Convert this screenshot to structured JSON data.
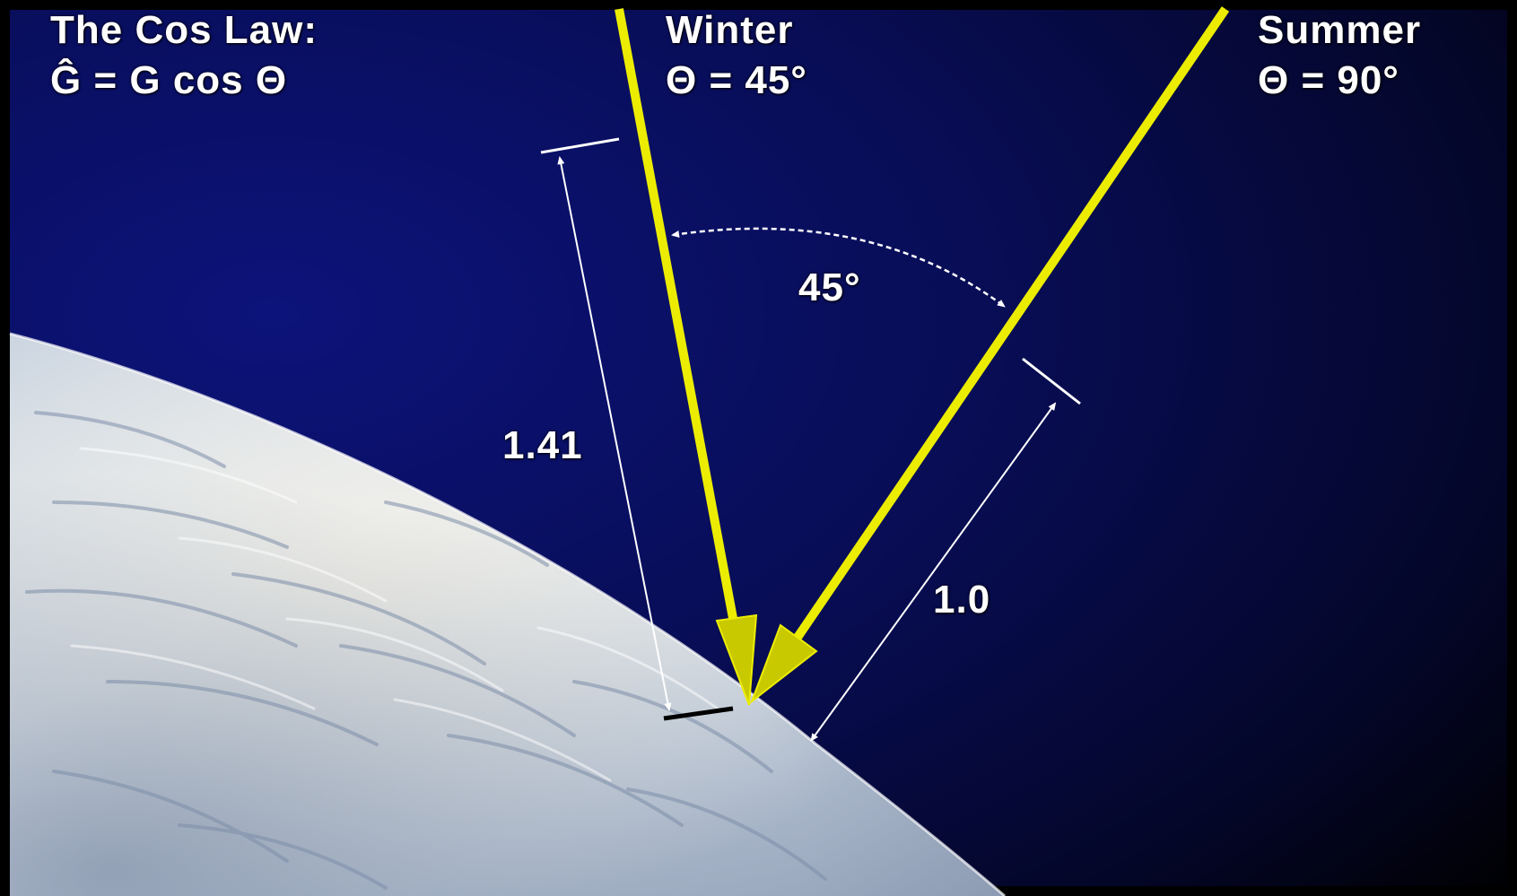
{
  "title": {
    "line1": "The Cos Law:",
    "line2": "Ĝ = G cos Θ"
  },
  "winter": {
    "name": "Winter",
    "angle": "Θ = 45°"
  },
  "summer": {
    "name": "Summer",
    "angle": "Θ = 90°"
  },
  "measurements": {
    "angle_between": "45°",
    "winter_span": "1.41",
    "summer_span": "1.0"
  },
  "colors": {
    "sky_dark": "#000000",
    "sky_blue": "#0a0f5c",
    "sun_ray": "#e8e800",
    "dimension_line": "#ffffff",
    "earth_light": "#dfe6ee",
    "earth_shadow": "#7f8fa8"
  }
}
